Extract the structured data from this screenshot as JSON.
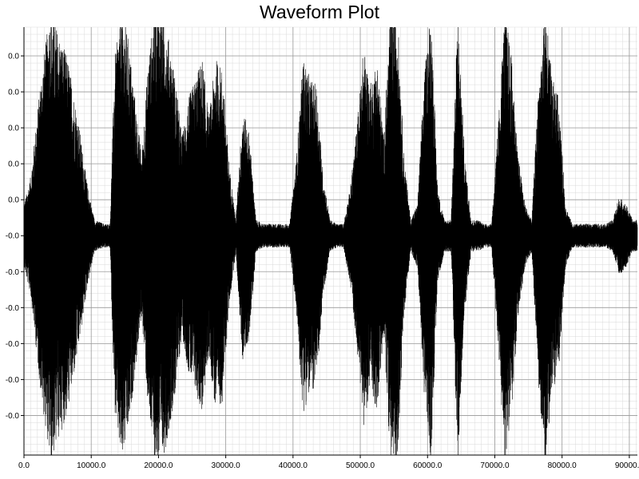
{
  "chart_data": {
    "type": "line",
    "title": "Waveform Plot",
    "xlabel": "",
    "ylabel": "",
    "xlim": [
      0,
      91200
    ],
    "ylim": [
      -0.0061,
      0.0058
    ],
    "x_ticks": [
      0,
      10000,
      20000,
      30000,
      40000,
      50000,
      60000,
      70000,
      80000,
      90000
    ],
    "x_tick_labels": [
      "0.0",
      "10000.0",
      "20000.0",
      "30000.0",
      "40000.0",
      "50000.0",
      "60000.0",
      "70000.0",
      "80000.0",
      "90000.0"
    ],
    "y_ticks": [
      0.005,
      0.004,
      0.003,
      0.002,
      0.001,
      0.0,
      -0.001,
      -0.002,
      -0.003,
      -0.004,
      -0.005
    ],
    "y_tick_labels": [
      "0.0",
      "0.0",
      "0.0",
      "0.0",
      "0.0",
      "-0.0",
      "-0.0",
      "-0.0",
      "-0.0",
      "-0.0",
      "-0.0"
    ],
    "grid": true,
    "minor_grid": true,
    "line_color": "#000000",
    "series": [
      {
        "envelope_x": [
          0,
          1000,
          2500,
          4000,
          5000,
          6500,
          8000,
          9500,
          10500,
          12000,
          12800,
          13500,
          14500,
          15500,
          16500,
          17500,
          18500,
          19500,
          20500,
          21500,
          22500,
          23500,
          24500,
          25500,
          26500,
          27500,
          28500,
          29500,
          30500,
          31500,
          32500,
          33500,
          34500,
          35500,
          36500,
          37500,
          38500,
          39500,
          40500,
          41500,
          42500,
          43500,
          44500,
          45500,
          46500,
          47500,
          48500,
          49500,
          50500,
          51500,
          52500,
          53500,
          54500,
          55500,
          56500,
          57500,
          58500,
          59500,
          60500,
          61500,
          62500,
          63500,
          64500,
          65500,
          66500,
          67500,
          68500,
          69500,
          70500,
          71500,
          72500,
          73500,
          74500,
          75500,
          76500,
          77500,
          78500,
          79500,
          80500,
          81500,
          82500,
          83500,
          84500,
          85500,
          86500,
          87500,
          88500,
          89500,
          90500,
          91200
        ],
        "envelope_amp": [
          0.0008,
          0.0015,
          0.004,
          0.0058,
          0.0052,
          0.0045,
          0.003,
          0.0012,
          0.0004,
          0.0003,
          0.0003,
          0.0045,
          0.0058,
          0.005,
          0.0035,
          0.002,
          0.0045,
          0.0058,
          0.0058,
          0.005,
          0.004,
          0.0025,
          0.0035,
          0.004,
          0.0045,
          0.003,
          0.0045,
          0.0042,
          0.0018,
          0.0004,
          0.0032,
          0.0026,
          0.0004,
          0.0003,
          0.0003,
          0.0003,
          0.0003,
          0.0003,
          0.002,
          0.0045,
          0.004,
          0.0038,
          0.0015,
          0.0004,
          0.0003,
          0.0003,
          0.0012,
          0.0028,
          0.0048,
          0.0038,
          0.0045,
          0.0025,
          0.0058,
          0.0058,
          0.002,
          0.0004,
          0.0008,
          0.004,
          0.0058,
          0.0012,
          0.0004,
          0.0004,
          0.0058,
          0.002,
          0.0004,
          0.0004,
          0.0003,
          0.0003,
          0.0028,
          0.0058,
          0.0045,
          0.002,
          0.0008,
          0.0004,
          0.0038,
          0.0058,
          0.004,
          0.0035,
          0.0008,
          0.0003,
          0.0003,
          0.0003,
          0.0003,
          0.0003,
          0.0003,
          0.0004,
          0.001,
          0.0008,
          0.0004,
          0.0004
        ]
      }
    ]
  }
}
